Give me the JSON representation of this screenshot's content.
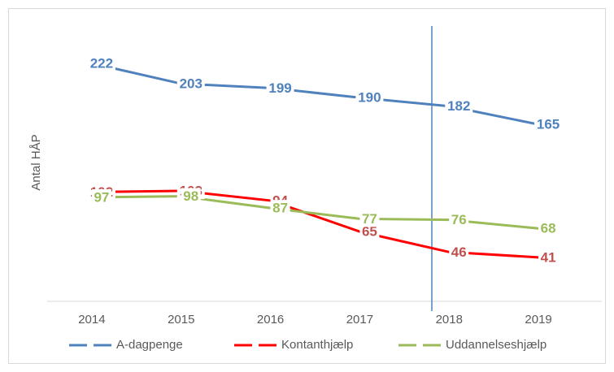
{
  "chart_data": {
    "type": "line",
    "y_label": "Antal HÅP",
    "categories": [
      "2014",
      "2015",
      "2016",
      "2017",
      "2018",
      "2019"
    ],
    "series": [
      {
        "name": "A-dagpenge",
        "color": "#4f81bd",
        "label_color": "#4f81bd",
        "values": [
          222,
          203,
          199,
          190,
          182,
          165
        ]
      },
      {
        "name": "Kontanthjælp",
        "color": "#ff0000",
        "label_color": "#c0504d",
        "values": [
          102,
          103,
          94,
          65,
          46,
          41
        ]
      },
      {
        "name": "Uddannelseshjælp",
        "color": "#9bbb59",
        "label_color": "#9bbb59",
        "values": [
          97,
          98,
          87,
          77,
          76,
          68
        ]
      }
    ],
    "ylim": [
      0,
      250
    ],
    "legend": "bottom"
  }
}
